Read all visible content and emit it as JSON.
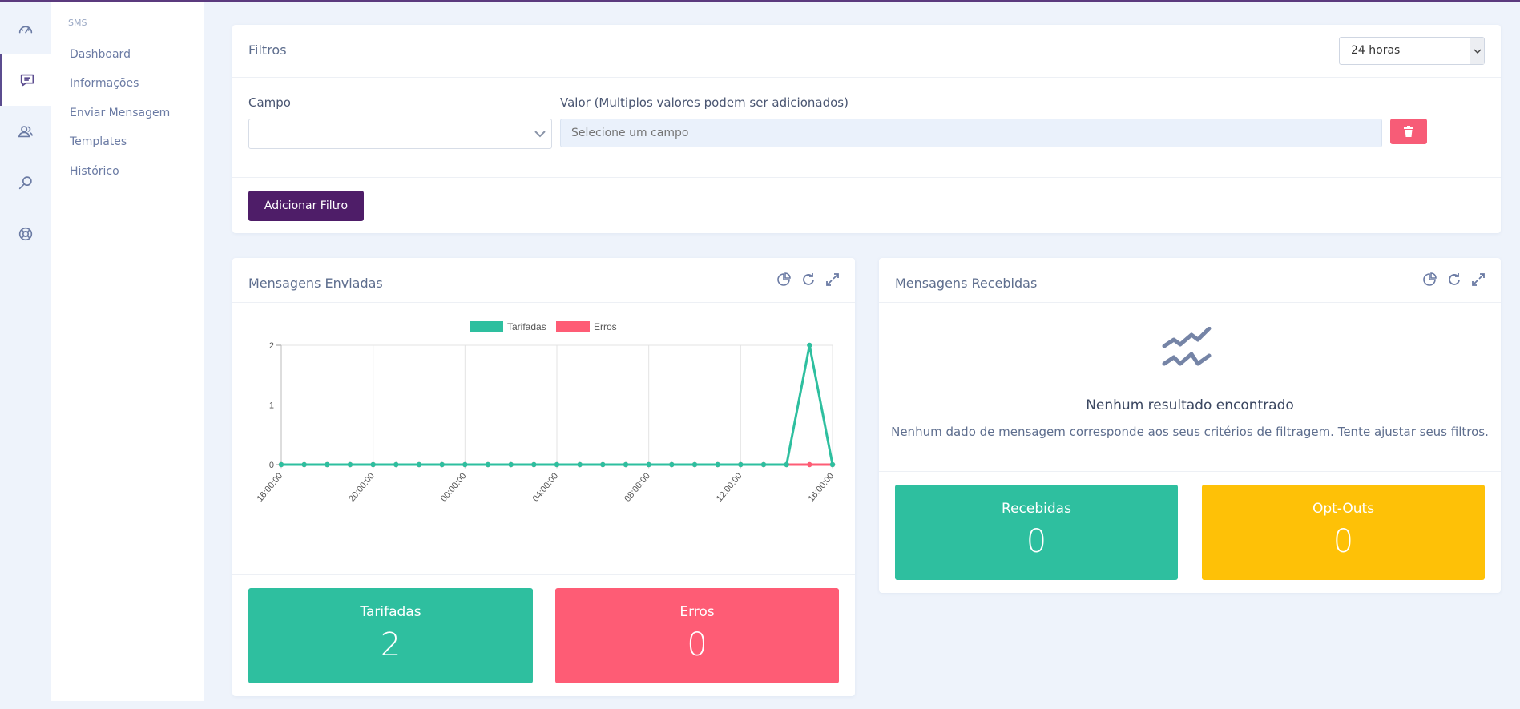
{
  "colors": {
    "accent": "#4e1d68",
    "green": "#2ebf9f",
    "red": "#fe5c75",
    "yellow": "#fec107",
    "background": "#eef3fb"
  },
  "rail": {
    "items": [
      {
        "icon": "speedometer-icon"
      },
      {
        "icon": "chat-icon",
        "active": true
      },
      {
        "icon": "users-icon"
      },
      {
        "icon": "search-icon"
      },
      {
        "icon": "lifebuoy-icon"
      }
    ]
  },
  "submenu": {
    "section": "SMS",
    "items": [
      {
        "label": "Dashboard"
      },
      {
        "label": "Informações"
      },
      {
        "label": "Enviar Mensagem"
      },
      {
        "label": "Templates"
      },
      {
        "label": "Histórico"
      }
    ]
  },
  "filters": {
    "title": "Filtros",
    "period": "24 horas",
    "campo_label": "Campo",
    "valor_label": "Valor (Multiplos valores podem ser adicionados)",
    "valor_placeholder": "Selecione um campo",
    "add_button": "Adicionar Filtro"
  },
  "sent": {
    "title": "Mensagens Enviadas",
    "stats": [
      {
        "label": "Tarifadas",
        "value": "2"
      },
      {
        "label": "Erros",
        "value": "0"
      }
    ]
  },
  "received": {
    "title": "Mensagens Recebidas",
    "empty_title": "Nenhum resultado encontrado",
    "empty_text": "Nenhum dado de mensagem corresponde aos seus critérios de filtragem. Tente ajustar seus filtros.",
    "stats": [
      {
        "label": "Recebidas",
        "value": "0"
      },
      {
        "label": "Opt-Outs",
        "value": "0"
      }
    ]
  },
  "chart_data": {
    "type": "line",
    "title": "",
    "xlabel": "",
    "ylabel": "",
    "ylim": [
      0,
      2
    ],
    "yticks": [
      "0",
      "1",
      "2"
    ],
    "xtick_labels": [
      "16:00:00",
      "20:00:00",
      "00:00:00",
      "04:00:00",
      "08:00:00",
      "12:00:00",
      "16:00:00"
    ],
    "legend_position": "top",
    "grid": true,
    "series": [
      {
        "name": "Tarifadas",
        "color": "#2ebf9f",
        "values": [
          0,
          0,
          0,
          0,
          0,
          0,
          0,
          0,
          0,
          0,
          0,
          0,
          0,
          0,
          0,
          0,
          0,
          0,
          0,
          0,
          0,
          0,
          0,
          2,
          0
        ]
      },
      {
        "name": "Erros",
        "color": "#fe5c75",
        "values": [
          0,
          0,
          0,
          0,
          0,
          0,
          0,
          0,
          0,
          0,
          0,
          0,
          0,
          0,
          0,
          0,
          0,
          0,
          0,
          0,
          0,
          0,
          0,
          0,
          0
        ]
      }
    ]
  }
}
